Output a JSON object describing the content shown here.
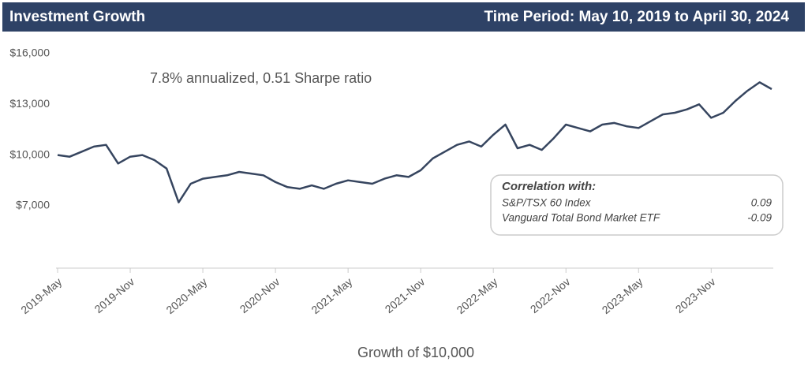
{
  "chart_data": {
    "type": "line",
    "title": "Investment Growth",
    "subtitle": "Time Period: May 10, 2019 to April 30, 2024",
    "annotation": "7.8% annualized, 0.51 Sharpe ratio",
    "x_label": "Growth of $10,000",
    "color": "#36455f",
    "x": [
      "2019-05",
      "2019-06",
      "2019-07",
      "2019-08",
      "2019-09",
      "2019-10",
      "2019-11",
      "2019-12",
      "2020-01",
      "2020-02",
      "2020-03",
      "2020-04",
      "2020-05",
      "2020-06",
      "2020-07",
      "2020-08",
      "2020-09",
      "2020-10",
      "2020-11",
      "2020-12",
      "2021-01",
      "2021-02",
      "2021-03",
      "2021-04",
      "2021-05",
      "2021-06",
      "2021-07",
      "2021-08",
      "2021-09",
      "2021-10",
      "2021-11",
      "2021-12",
      "2022-01",
      "2022-02",
      "2022-03",
      "2022-04",
      "2022-05",
      "2022-06",
      "2022-07",
      "2022-08",
      "2022-09",
      "2022-10",
      "2022-11",
      "2022-12",
      "2023-01",
      "2023-02",
      "2023-03",
      "2023-04",
      "2023-05",
      "2023-06",
      "2023-07",
      "2023-08",
      "2023-09",
      "2023-10",
      "2023-11",
      "2023-12",
      "2024-01",
      "2024-02",
      "2024-03",
      "2024-04"
    ],
    "values": [
      10000,
      9900,
      10200,
      10500,
      10600,
      9500,
      9900,
      10000,
      9700,
      9200,
      7200,
      8300,
      8600,
      8700,
      8800,
      9000,
      8900,
      8800,
      8400,
      8100,
      8000,
      8200,
      8000,
      8300,
      8500,
      8400,
      8300,
      8600,
      8800,
      8700,
      9100,
      9800,
      10200,
      10600,
      10800,
      10500,
      11200,
      11800,
      10400,
      10600,
      10300,
      11000,
      11800,
      11600,
      11400,
      11800,
      11900,
      11700,
      11600,
      12000,
      12400,
      12500,
      12700,
      13000,
      12200,
      12500,
      13200,
      13800,
      14300,
      13900
    ],
    "xlim": [
      "2019-05",
      "2024-04"
    ],
    "ylim": [
      3400,
      16000
    ],
    "xticks": [
      {
        "value": "2019-05",
        "label": "2019-May"
      },
      {
        "value": "2019-11",
        "label": "2019-Nov"
      },
      {
        "value": "2020-05",
        "label": "2020-May"
      },
      {
        "value": "2020-11",
        "label": "2020-Nov"
      },
      {
        "value": "2021-05",
        "label": "2021-May"
      },
      {
        "value": "2021-11",
        "label": "2021-Nov"
      },
      {
        "value": "2022-05",
        "label": "2022-May"
      },
      {
        "value": "2022-11",
        "label": "2022-Nov"
      },
      {
        "value": "2023-05",
        "label": "2023-May"
      },
      {
        "value": "2023-11",
        "label": "2023-Nov"
      }
    ],
    "yticks": [
      {
        "value": 7000,
        "label": "$7,000"
      },
      {
        "value": 10000,
        "label": "$10,000"
      },
      {
        "value": 13000,
        "label": "$13,000"
      },
      {
        "value": 16000,
        "label": "$16,000"
      }
    ],
    "grid": false,
    "correlation": {
      "title": "Correlation with:",
      "rows": [
        {
          "name": "S&P/TSX 60 Index",
          "value": 0.09
        },
        {
          "name": "Vanguard Total Bond Market ETF",
          "value": -0.09
        }
      ]
    }
  }
}
